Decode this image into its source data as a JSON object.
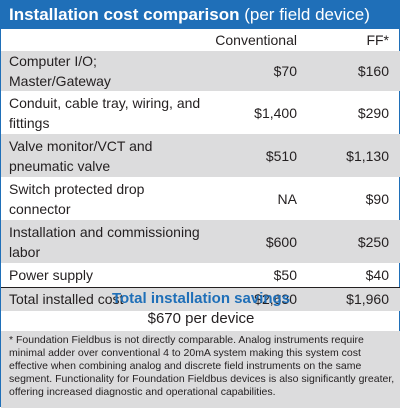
{
  "title": {
    "bold": "Installation cost comparison",
    "sub": "(per field device)"
  },
  "columns": {
    "conventional": "Conventional",
    "ff": "FF*"
  },
  "rows": [
    {
      "label": "Computer I/O; Master/Gateway",
      "conventional": "$70",
      "ff": "$160"
    },
    {
      "label": "Conduit, cable tray, wiring, and fittings",
      "conventional": "$1,400",
      "ff": "$290"
    },
    {
      "label": "Valve monitor/VCT and pneumatic valve",
      "conventional": "$510",
      "ff": "$1,130"
    },
    {
      "label": "Switch protected drop connector",
      "conventional": "NA",
      "ff": "$90"
    },
    {
      "label": "Installation and commissioning labor",
      "conventional": "$600",
      "ff": "$250"
    },
    {
      "label": "Power supply",
      "conventional": "$50",
      "ff": "$40"
    }
  ],
  "total": {
    "label": "Total installed cost",
    "conventional": "$2,630",
    "ff": "$1,960"
  },
  "savings": {
    "title": "Total installation savings",
    "value": "$670 per device"
  },
  "footnote": "* Foundation Fieldbus is not directly comparable. Analog instruments require minimal adder over conventional 4 to 20mA system making this system cost effective when combining analog and discrete field instruments on the same segment. Functionality for Foundation Fieldbus devices is also significantly greater, offering increased diagnostic and operational capabilities.",
  "colors": {
    "accent": "#1f6fb8",
    "shade": "#dcdcdd"
  }
}
